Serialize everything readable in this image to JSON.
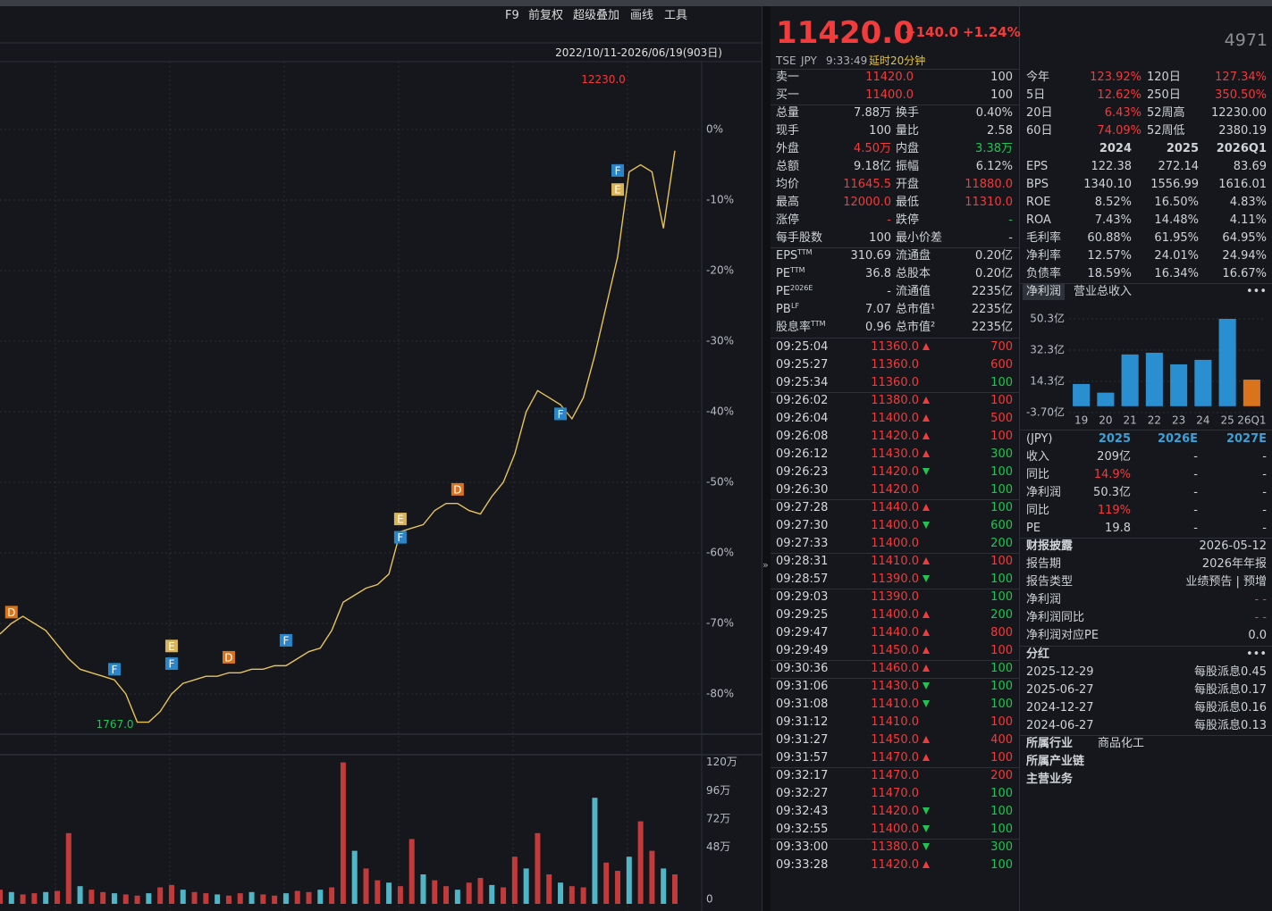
{
  "toolbar": [
    "F9",
    "前复权",
    "超级叠加",
    "画线",
    "工具"
  ],
  "range_label": "2022/10/11-2026/06/19(903日)",
  "chart_data": {
    "type": "line",
    "color": "#e8c25a",
    "xlim": [
      0,
      59
    ],
    "ylim": [
      -85.7,
      9.5
    ],
    "yticks": [
      {
        "value": 0,
        "label": "0%"
      },
      {
        "value": -10,
        "label": "-10%"
      },
      {
        "value": -20,
        "label": "-20%"
      },
      {
        "value": -30,
        "label": "-30%"
      },
      {
        "value": -40,
        "label": "-40%"
      },
      {
        "value": -50,
        "label": "-50%"
      },
      {
        "value": -60,
        "label": "-60%"
      },
      {
        "value": -70,
        "label": "-70%"
      },
      {
        "value": -80,
        "label": "-80%"
      }
    ],
    "values": [
      -71.5,
      -70,
      -69,
      -70,
      -71,
      -73,
      -75,
      -76.5,
      -77,
      -77.5,
      -78,
      -80,
      -84,
      -84,
      -82.5,
      -80,
      -78.5,
      -78,
      -77.5,
      -77.5,
      -77,
      -77,
      -76.5,
      -76.5,
      -76,
      -76,
      -75,
      -74,
      -73.5,
      -71,
      -67,
      -66,
      -65,
      -64.5,
      -63,
      -57,
      -56.5,
      -56,
      -54,
      -53,
      -53,
      -54,
      -54.5,
      -52,
      -50,
      -46,
      -40,
      -37,
      -38,
      -39,
      -41,
      -38,
      -32,
      -25,
      -18,
      -6,
      -5,
      -6,
      -14,
      -3
    ],
    "annotations": [
      {
        "text": "12230.0",
        "x": 55,
        "y": 7
      },
      {
        "text": "1767.0",
        "x": 12,
        "y": -84.4
      }
    ],
    "marker_colors": {
      "D": "#d9741c",
      "E": "#d9b45a",
      "F": "#2a86c8"
    },
    "markers": [
      {
        "label": "D",
        "x": 1,
        "y": -68.4
      },
      {
        "label": "F",
        "x": 10,
        "y": -76.5
      },
      {
        "label": "E",
        "x": 15,
        "y": -73.2
      },
      {
        "label": "F",
        "x": 15,
        "y": -75.7
      },
      {
        "label": "D",
        "x": 20,
        "y": -74.8
      },
      {
        "label": "F",
        "x": 25,
        "y": -72.4
      },
      {
        "label": "E",
        "x": 35,
        "y": -55.2
      },
      {
        "label": "F",
        "x": 35,
        "y": -57.8
      },
      {
        "label": "D",
        "x": 40,
        "y": -51
      },
      {
        "label": "F",
        "x": 49,
        "y": -40.3
      },
      {
        "label": "F",
        "x": 54,
        "y": -5.8
      },
      {
        "label": "E",
        "x": 54,
        "y": -8.5
      }
    ]
  },
  "volume_chart": {
    "type": "bar",
    "color": "#c23a3a",
    "ylim": [
      0,
      125
    ],
    "yticks": [
      {
        "value": 120,
        "label": "120万"
      },
      {
        "value": 96,
        "label": "96万"
      },
      {
        "value": 72,
        "label": "72万"
      },
      {
        "value": 48,
        "label": "48万"
      },
      0
    ],
    "values": [
      12,
      10,
      8,
      9,
      10,
      11,
      60,
      15,
      12,
      10,
      9,
      8,
      7,
      9,
      14,
      16,
      12,
      10,
      9,
      8,
      7,
      9,
      10,
      8,
      7,
      9,
      11,
      10,
      12,
      14,
      120,
      45,
      30,
      20,
      18,
      15,
      55,
      25,
      20,
      15,
      12,
      18,
      22,
      16,
      14,
      40,
      30,
      60,
      25,
      18,
      15,
      14,
      90,
      35,
      28,
      40,
      70,
      45,
      30,
      25
    ]
  },
  "quote": {
    "price": "11420.0",
    "change": "+140.0",
    "change_pct": "+1.24%",
    "code": "4971",
    "market": "TSE",
    "currency": "JPY",
    "time": "9:33:49",
    "delay": "延时20分钟"
  },
  "order_book": [
    [
      "卖一",
      "11420.0",
      "100"
    ],
    [
      "买一",
      "11400.0",
      "100"
    ]
  ],
  "stats": [
    {
      "l1": "总量",
      "v1": "7.88万",
      "l2": "换手",
      "v2": "0.40%"
    },
    {
      "l1": "现手",
      "v1": "100",
      "l2": "量比",
      "v2": "2.58"
    },
    {
      "l1": "外盘",
      "v1": "4.50万",
      "t1": "up",
      "l2": "内盘",
      "v2": "3.38万",
      "t2": "down"
    },
    {
      "l1": "总额",
      "v1": "9.18亿",
      "l2": "振幅",
      "v2": "6.12%"
    },
    {
      "l1": "均价",
      "v1": "11645.5",
      "t1": "up",
      "l2": "开盘",
      "v2": "11880.0",
      "t2": "up"
    },
    {
      "l1": "最高",
      "v1": "12000.0",
      "t1": "up",
      "l2": "最低",
      "v2": "11310.0",
      "t2": "up"
    },
    {
      "l1": "涨停",
      "v1": "-",
      "t1": "up",
      "l2": "跌停",
      "v2": "-",
      "t2": "down"
    },
    {
      "l1": "每手股数",
      "v1": "100",
      "l2": "最小价差",
      "v2": "-"
    },
    {
      "l1": "EPS",
      "s1": "TTM",
      "v1": "310.69",
      "l2": "流通盘",
      "v2": "0.20亿"
    },
    {
      "l1": "PE",
      "s1": "TTM",
      "v1": "36.8",
      "l2": "总股本",
      "v2": "0.20亿"
    },
    {
      "l1": "PE",
      "s1": "2026E",
      "v1": "-",
      "l2": "流通值",
      "v2": "2235亿"
    },
    {
      "l1": "PB",
      "s1": "LF",
      "v1": "7.07",
      "l2": "总市值¹",
      "v2": "2235亿"
    },
    {
      "l1": "股息率",
      "s1": "TTM",
      "v1": "0.96",
      "l2": "总市值²",
      "v2": "2235亿"
    }
  ],
  "trades": [
    {
      "time": "09:25:04",
      "price": "11360.0",
      "arrow": "up",
      "vol": "700",
      "side": "up"
    },
    {
      "time": "09:25:27",
      "price": "11360.0",
      "vol": "600",
      "side": "up"
    },
    {
      "time": "09:25:34",
      "price": "11360.0",
      "vol": "100",
      "side": "down"
    },
    {
      "time": "09:26:02",
      "price": "11380.0",
      "arrow": "up",
      "vol": "100",
      "side": "up"
    },
    {
      "time": "09:26:04",
      "price": "11400.0",
      "arrow": "up",
      "vol": "500",
      "side": "up"
    },
    {
      "time": "09:26:08",
      "price": "11420.0",
      "arrow": "up",
      "vol": "100",
      "side": "up"
    },
    {
      "time": "09:26:12",
      "price": "11430.0",
      "arrow": "up",
      "vol": "300",
      "side": "down"
    },
    {
      "time": "09:26:23",
      "price": "11420.0",
      "arrow": "down",
      "vol": "100",
      "side": "down"
    },
    {
      "time": "09:26:30",
      "price": "11420.0",
      "vol": "100",
      "side": "down"
    },
    {
      "time": "09:27:28",
      "price": "11440.0",
      "arrow": "up",
      "vol": "100",
      "side": "down"
    },
    {
      "time": "09:27:30",
      "price": "11400.0",
      "arrow": "down",
      "vol": "600",
      "side": "down"
    },
    {
      "time": "09:27:33",
      "price": "11400.0",
      "vol": "200",
      "side": "down"
    },
    {
      "time": "09:28:31",
      "price": "11410.0",
      "arrow": "up",
      "vol": "100",
      "side": "up"
    },
    {
      "time": "09:28:57",
      "price": "11390.0",
      "arrow": "down",
      "vol": "100",
      "side": "down"
    },
    {
      "time": "09:29:03",
      "price": "11390.0",
      "vol": "100",
      "side": "down"
    },
    {
      "time": "09:29:25",
      "price": "11400.0",
      "arrow": "up",
      "vol": "200",
      "side": "down"
    },
    {
      "time": "09:29:47",
      "price": "11440.0",
      "arrow": "up",
      "vol": "800",
      "side": "up"
    },
    {
      "time": "09:29:49",
      "price": "11450.0",
      "arrow": "up",
      "vol": "100",
      "side": "up"
    },
    {
      "time": "09:30:36",
      "price": "11460.0",
      "arrow": "up",
      "vol": "100",
      "side": "down"
    },
    {
      "time": "09:31:06",
      "price": "11430.0",
      "arrow": "down",
      "vol": "100",
      "side": "down"
    },
    {
      "time": "09:31:08",
      "price": "11410.0",
      "arrow": "down",
      "vol": "100",
      "side": "down"
    },
    {
      "time": "09:31:12",
      "price": "11410.0",
      "vol": "100",
      "side": "up"
    },
    {
      "time": "09:31:27",
      "price": "11450.0",
      "arrow": "up",
      "vol": "400",
      "side": "up"
    },
    {
      "time": "09:31:57",
      "price": "11470.0",
      "arrow": "up",
      "vol": "100",
      "side": "up"
    },
    {
      "time": "09:32:17",
      "price": "11470.0",
      "vol": "200",
      "side": "up"
    },
    {
      "time": "09:32:27",
      "price": "11470.0",
      "vol": "100",
      "side": "down"
    },
    {
      "time": "09:32:43",
      "price": "11420.0",
      "arrow": "down",
      "vol": "100",
      "side": "down"
    },
    {
      "time": "09:32:55",
      "price": "11400.0",
      "arrow": "down",
      "vol": "100",
      "side": "down"
    },
    {
      "time": "09:33:00",
      "price": "11380.0",
      "arrow": "down",
      "vol": "300",
      "side": "down"
    },
    {
      "time": "09:33:28",
      "price": "11420.0",
      "arrow": "up",
      "vol": "100",
      "side": "down"
    }
  ],
  "performance": [
    {
      "l1": "今年",
      "v1": "123.92%",
      "t1": "up",
      "l2": "120日",
      "v2": "127.34%",
      "t2": "up"
    },
    {
      "l1": "5日",
      "v1": "12.62%",
      "t1": "up",
      "l2": "250日",
      "v2": "350.50%",
      "t2": "up"
    },
    {
      "l1": "20日",
      "v1": "6.43%",
      "t1": "up",
      "l2": "52周高",
      "v2": "12230.00"
    },
    {
      "l1": "60日",
      "v1": "74.09%",
      "t1": "up",
      "l2": "52周低",
      "v2": "2380.19"
    }
  ],
  "financials": {
    "header": [
      "2024",
      "2025",
      "2026Q1"
    ],
    "rows": [
      [
        "EPS",
        "122.38",
        "272.14",
        "83.69"
      ],
      [
        "BPS",
        "1340.10",
        "1556.99",
        "1616.01"
      ],
      [
        "ROE",
        "8.52%",
        "16.50%",
        "4.83%"
      ],
      [
        "ROA",
        "7.43%",
        "14.48%",
        "4.11%"
      ],
      [
        "毛利率",
        "60.88%",
        "61.95%",
        "64.95%"
      ],
      [
        "净利率",
        "12.57%",
        "24.01%",
        "24.94%"
      ],
      [
        "负债率",
        "18.59%",
        "16.34%",
        "16.67%"
      ]
    ]
  },
  "tabs": [
    "净利润",
    "营业总收入"
  ],
  "more": "•••",
  "profit_chart": {
    "type": "bar",
    "categories": [
      "19",
      "20",
      "21",
      "22",
      "23",
      "24",
      "25",
      "26Q1"
    ],
    "values": [
      12.8,
      7.8,
      29.8,
      30.8,
      24.1,
      26.7,
      50.3,
      15.3
    ],
    "colors": [
      "#2a8fd0",
      "#2a8fd0",
      "#2a8fd0",
      "#2a8fd0",
      "#2a8fd0",
      "#2a8fd0",
      "#2a8fd0",
      "#d9741c"
    ],
    "ylim": [
      -3.7,
      50.3
    ],
    "yticks": [
      {
        "value": 50.3,
        "label": "50.3亿"
      },
      {
        "value": 32.3,
        "label": "32.3亿"
      },
      {
        "value": 14.3,
        "label": "14.3亿"
      },
      {
        "value": -3.7,
        "label": "-3.70亿"
      }
    ]
  },
  "estimates": {
    "header": [
      "(JPY)",
      "2025",
      "2026E",
      "2027E"
    ],
    "rows": [
      {
        "cells": [
          "收入",
          "209亿",
          "-",
          "-"
        ]
      },
      {
        "cells": [
          "同比",
          "14.9%",
          "-",
          "-"
        ],
        "tone": "up"
      },
      {
        "cells": [
          "净利润",
          "50.3亿",
          "-",
          "-"
        ]
      },
      {
        "cells": [
          "同比",
          "119%",
          "-",
          "-"
        ],
        "tone": "up"
      },
      {
        "cells": [
          "PE",
          "19.8",
          "-",
          "-"
        ]
      }
    ]
  },
  "disclosure": [
    {
      "label": "财报披露",
      "value": "2026-05-12",
      "bold": true
    },
    {
      "label": "报告期",
      "value": "2026年年报"
    },
    {
      "label": "报告类型",
      "value": "业绩预告 | 预增"
    },
    {
      "label": "净利润",
      "value": "- -",
      "tone": "up"
    },
    {
      "label": "净利润同比",
      "value": "- -",
      "tone": "up"
    },
    {
      "label": "净利润对应PE",
      "value": "0.0"
    }
  ],
  "dividend_title": "分红",
  "dividends": [
    [
      "2025-12-29",
      "每股派息0.45"
    ],
    [
      "2025-06-27",
      "每股派息0.17"
    ],
    [
      "2024-12-27",
      "每股派息0.16"
    ],
    [
      "2024-06-27",
      "每股派息0.13"
    ]
  ],
  "profile": [
    [
      "所属行业",
      "商品化工"
    ],
    [
      "所属产业链"
    ],
    [
      "主营业务"
    ]
  ]
}
